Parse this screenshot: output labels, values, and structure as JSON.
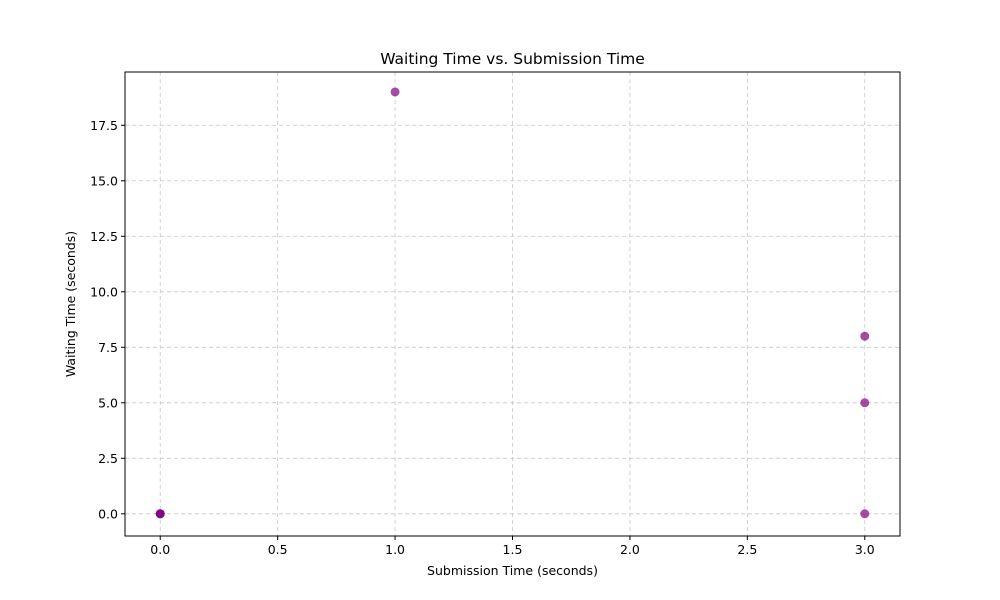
{
  "chart_data": {
    "type": "scatter",
    "title": "Waiting Time vs. Submission Time",
    "xlabel": "Submission Time (seconds)",
    "ylabel": "Waiting Time (seconds)",
    "xlim": [
      -0.15,
      3.15
    ],
    "ylim": [
      -1.0,
      19.9
    ],
    "xticks": [
      0.0,
      0.5,
      1.0,
      1.5,
      2.0,
      2.5,
      3.0
    ],
    "xtick_labels": [
      "0.0",
      "0.5",
      "1.0",
      "1.5",
      "2.0",
      "2.5",
      "3.0"
    ],
    "yticks": [
      0.0,
      2.5,
      5.0,
      7.5,
      10.0,
      12.5,
      15.0,
      17.5
    ],
    "ytick_labels": [
      "0.0",
      "2.5",
      "5.0",
      "7.5",
      "10.0",
      "12.5",
      "15.0",
      "17.5"
    ],
    "grid": true,
    "marker_color": "#800080",
    "points": [
      {
        "x": 0,
        "y": 0
      },
      {
        "x": 0,
        "y": 0
      },
      {
        "x": 0,
        "y": 0
      },
      {
        "x": 1,
        "y": 19
      },
      {
        "x": 3,
        "y": 8
      },
      {
        "x": 3,
        "y": 5
      },
      {
        "x": 3,
        "y": 0
      }
    ]
  }
}
